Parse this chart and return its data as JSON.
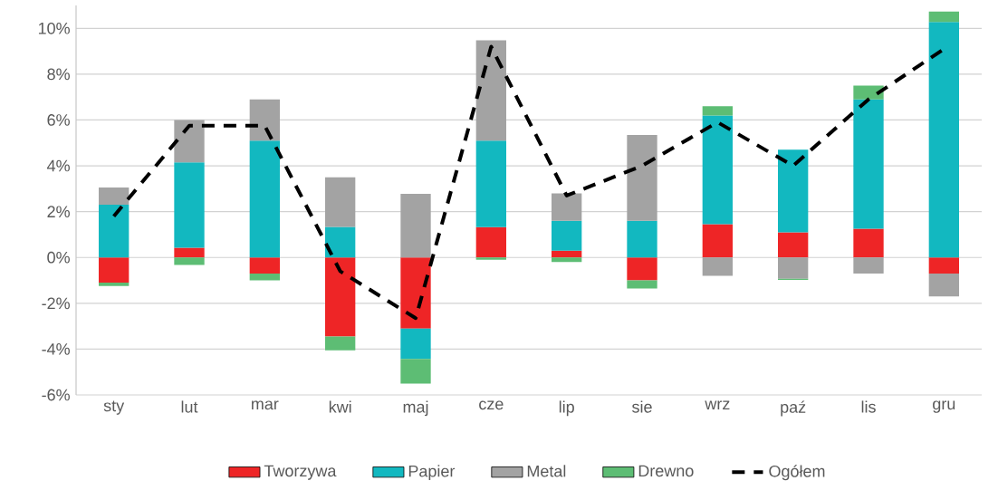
{
  "chart_data": {
    "type": "bar",
    "stacked": true,
    "grid": "y",
    "legend": "bottom",
    "categories": [
      "sty",
      "lut",
      "mar",
      "kwi",
      "maj",
      "cze",
      "lip",
      "sie",
      "wrz",
      "paź",
      "lis",
      "gru"
    ],
    "ylim": [
      -6,
      11
    ],
    "yticks": [
      {
        "value": -6,
        "label": "-6%"
      },
      {
        "value": -4,
        "label": "-4%"
      },
      {
        "value": -2,
        "label": "-2%"
      },
      {
        "value": 0,
        "label": "0%"
      },
      {
        "value": 2,
        "label": "2%"
      },
      {
        "value": 4,
        "label": "4%"
      },
      {
        "value": 6,
        "label": "6%"
      },
      {
        "value": 8,
        "label": "8%"
      },
      {
        "value": 10,
        "label": "10%"
      }
    ],
    "series": [
      {
        "name": "Tworzywa",
        "color": "#ee2526",
        "values": [
          -1.1,
          0.42,
          -0.7,
          -3.45,
          -3.1,
          1.32,
          0.3,
          -1.0,
          1.45,
          1.1,
          1.25,
          -0.7
        ]
      },
      {
        "name": "Papier",
        "color": "#12b8c0",
        "values": [
          2.3,
          3.73,
          5.1,
          1.33,
          -1.33,
          3.78,
          1.3,
          1.6,
          4.75,
          3.6,
          5.65,
          10.28
        ]
      },
      {
        "name": "Metal",
        "color": "#a3a3a3",
        "values": [
          0.75,
          1.85,
          1.8,
          2.17,
          2.78,
          4.38,
          1.2,
          3.75,
          -0.8,
          -0.93,
          -0.7,
          -1.0
        ]
      },
      {
        "name": "Drewno",
        "color": "#5dbd74",
        "values": [
          -0.15,
          -0.33,
          -0.3,
          -0.6,
          -1.08,
          -0.1,
          -0.2,
          -0.35,
          0.4,
          -0.05,
          0.6,
          0.45
        ]
      },
      {
        "name": "Ogółem",
        "type": "line",
        "color": "#000000",
        "line_style": "dashed",
        "marker": "none",
        "values": [
          1.8,
          5.75,
          5.75,
          -0.6,
          -2.65,
          9.2,
          2.7,
          4.0,
          5.9,
          4.0,
          6.9,
          9.1
        ]
      }
    ]
  }
}
